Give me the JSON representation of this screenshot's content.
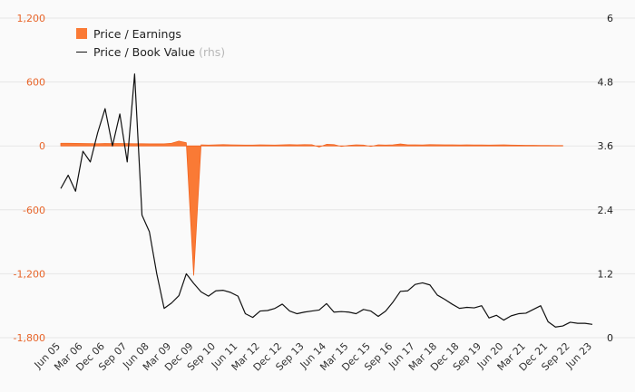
{
  "chart_data": {
    "type": "area",
    "colors": {
      "pe": "#f26522",
      "pe_fill": "#fa7a35",
      "pb": "#111111",
      "grid": "#e6e6e6",
      "left_axis_text": "#e8652a",
      "right_axis_text": "#222222"
    },
    "legend": {
      "items": [
        {
          "label": "Price / Earnings",
          "swatch": "area"
        },
        {
          "label": "Price / Book Value",
          "note": "(rhs)",
          "swatch": "line"
        }
      ]
    },
    "left_axis": {
      "ylim": [
        -1800,
        1200
      ],
      "ticks": [
        "1,200",
        "600",
        "0",
        "-600",
        "-1,200",
        "-1,800"
      ]
    },
    "right_axis": {
      "ylim": [
        0,
        6
      ],
      "ticks": [
        "6",
        "4.8",
        "3.6",
        "2.4",
        "1.2",
        "0"
      ]
    },
    "x_tick_labels": [
      "Jun 05",
      "Mar 06",
      "Dec 06",
      "Sep 07",
      "Jun 08",
      "Mar 09",
      "Dec 09",
      "Sep 10",
      "Jun 11",
      "Mar 12",
      "Dec 12",
      "Sep 13",
      "Jun 14",
      "Mar 15",
      "Dec 15",
      "Sep 16",
      "Jun 17",
      "Mar 18",
      "Dec 18",
      "Sep 19",
      "Jun 20",
      "Mar 21",
      "Dec 21",
      "Sep 22",
      "Jun 23"
    ],
    "x_start": "Jun 05",
    "x_step_months": 3,
    "series": [
      {
        "name": "Price / Earnings",
        "axis": "left",
        "values": [
          25,
          25,
          24,
          23,
          22,
          21,
          23,
          22,
          23,
          22,
          21,
          21,
          20,
          19,
          20,
          25,
          45,
          30,
          -1215,
          10,
          8,
          10,
          12,
          10,
          9,
          8,
          8,
          10,
          9,
          8,
          10,
          12,
          10,
          12,
          11,
          -10,
          15,
          12,
          -5,
          5,
          10,
          8,
          -5,
          10,
          8,
          10,
          18,
          10,
          10,
          9,
          12,
          11,
          10,
          10,
          9,
          10,
          9,
          9,
          8,
          9,
          10,
          8,
          7,
          6,
          6,
          5,
          5,
          4,
          4
        ]
      },
      {
        "name": "Price / Book Value",
        "axis": "right",
        "values": [
          2.8,
          3.05,
          2.75,
          3.5,
          3.3,
          3.85,
          4.3,
          3.6,
          4.2,
          3.3,
          4.95,
          2.3,
          1.99,
          1.2,
          0.55,
          0.65,
          0.79,
          1.2,
          1.02,
          0.86,
          0.78,
          0.88,
          0.89,
          0.85,
          0.78,
          0.45,
          0.38,
          0.5,
          0.51,
          0.55,
          0.63,
          0.5,
          0.45,
          0.48,
          0.5,
          0.52,
          0.64,
          0.48,
          0.49,
          0.48,
          0.45,
          0.53,
          0.5,
          0.4,
          0.5,
          0.67,
          0.87,
          0.88,
          1.0,
          1.03,
          0.99,
          0.8,
          0.72,
          0.63,
          0.55,
          0.57,
          0.56,
          0.6,
          0.37,
          0.42,
          0.33,
          0.41,
          0.45,
          0.46,
          0.53,
          0.6,
          0.3,
          0.2,
          0.22,
          0.29,
          0.27,
          0.27,
          0.25
        ]
      }
    ]
  }
}
